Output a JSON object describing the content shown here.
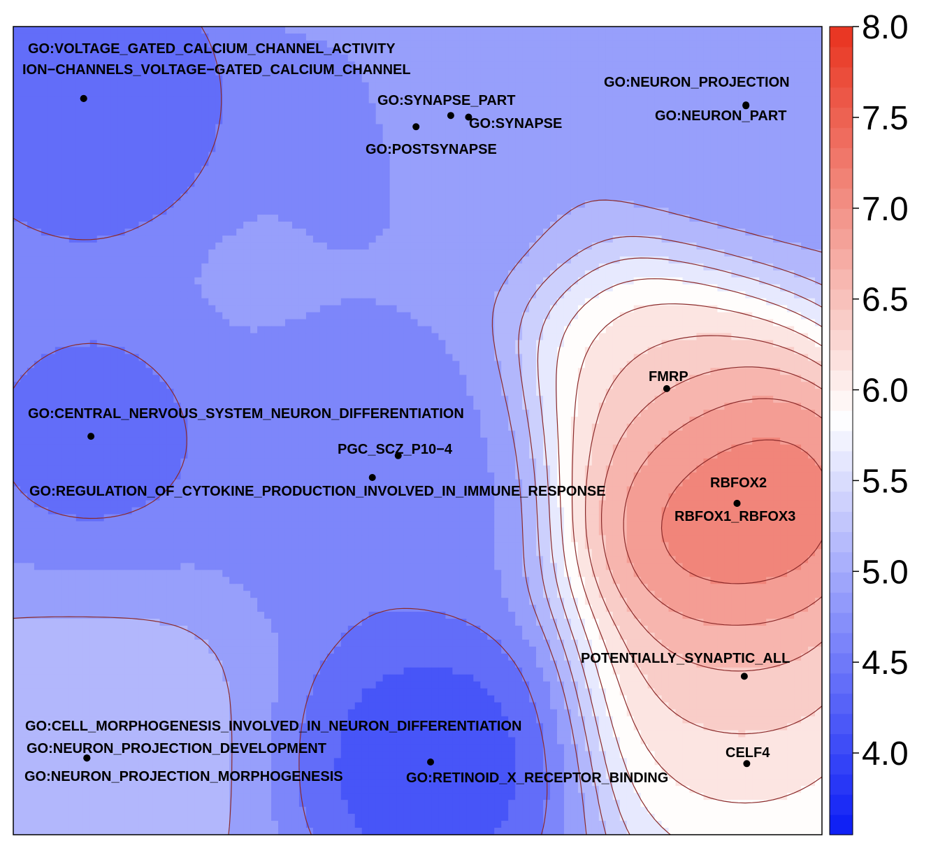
{
  "chart_data": {
    "type": "heatmap",
    "title": "",
    "xlabel": "",
    "ylabel": "",
    "xlim": [
      0,
      100
    ],
    "ylim": [
      0,
      100
    ],
    "contour_levels": [
      4.0,
      4.5,
      5.0,
      5.25,
      5.5,
      5.75,
      6.0,
      6.25,
      6.5,
      6.75,
      7.0,
      7.25,
      7.5
    ],
    "colorbar": {
      "min": 3.55,
      "max": 8.0,
      "ticks": [
        "4.0",
        "4.5",
        "5.0",
        "5.5",
        "6.0",
        "6.5",
        "7.0",
        "7.5",
        "8.0"
      ],
      "low_color": "#0a1cf5",
      "mid_color": "#ffffff",
      "high_color": "#e8321e"
    },
    "contour_line_color": "#8b2a2a",
    "points": [
      {
        "label": "GO:VOLTAGE_GATED_CALCIUM_CHANNEL_ACTIVITY",
        "x": 8.7,
        "y": 91.1,
        "value": 4.25
      },
      {
        "label": "ION−CHANNELS_VOLTAGE−GATED_CALCIUM_CHANNEL",
        "x": 8.7,
        "y": 91.1,
        "value": 4.25
      },
      {
        "label": "GO:SYNAPSE_PART",
        "x": 54.1,
        "y": 89.0,
        "value": 5.1
      },
      {
        "label": "GO:SYNAPSE",
        "x": 56.3,
        "y": 88.8,
        "value": 5.1
      },
      {
        "label": "GO:POSTSYNAPSE",
        "x": 49.8,
        "y": 87.6,
        "value": 4.25
      },
      {
        "label": "GO:NEURON_PROJECTION",
        "x": 90.6,
        "y": 90.3,
        "value": 4.8
      },
      {
        "label": "GO:NEURON_PART",
        "x": 90.6,
        "y": 90.2,
        "value": 4.8
      },
      {
        "label": "GO:CENTRAL_NERVOUS_SYSTEM_NEURON_DIFFERENTIATION",
        "x": 9.6,
        "y": 49.3,
        "value": 4.3
      },
      {
        "label": "PGC_SCZ_P10−4",
        "x": 47.6,
        "y": 46.9,
        "value": 4.8
      },
      {
        "label": "GO:REGULATION_OF_CYTOKINE_PRODUCTION_INVOLVED_IN_IMMUNE_RESPONSE",
        "x": 44.4,
        "y": 44.2,
        "value": 4.2
      },
      {
        "label": "FMRP",
        "x": 80.8,
        "y": 55.2,
        "value": 6.4
      },
      {
        "label": "RBFOX2",
        "x": 89.5,
        "y": 41.0,
        "value": 7.5
      },
      {
        "label": "RBFOX1_RBFOX3",
        "x": 89.5,
        "y": 41.0,
        "value": 7.5
      },
      {
        "label": "POTENTIALLY_SYNAPTIC_ALL",
        "x": 90.4,
        "y": 19.6,
        "value": 6.9
      },
      {
        "label": "CELF4",
        "x": 90.7,
        "y": 8.8,
        "value": 6.0
      },
      {
        "label": "GO:CELL_MORPHOGENESIS_INVOLVED_IN_NEURON_DIFFERENTIATION",
        "x": 9.1,
        "y": 9.5,
        "value": 5.1
      },
      {
        "label": "GO:NEURON_PROJECTION_DEVELOPMENT",
        "x": 9.1,
        "y": 9.5,
        "value": 5.1
      },
      {
        "label": "GO:NEURON_PROJECTION_MORPHOGENESIS",
        "x": 9.1,
        "y": 9.5,
        "value": 5.1
      },
      {
        "label": "GO:RETINOID_X_RECEPTOR_BINDING",
        "x": 51.6,
        "y": 9.0,
        "value": 3.9
      }
    ]
  }
}
